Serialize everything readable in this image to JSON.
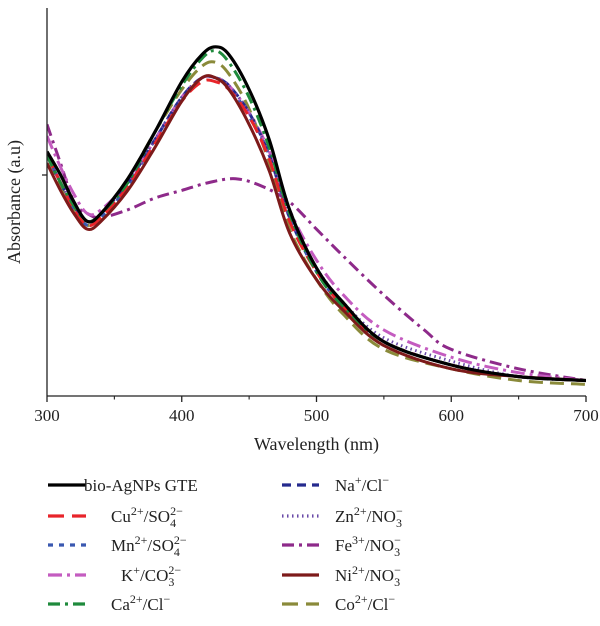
{
  "chart_data": {
    "type": "line",
    "title": "",
    "xlabel": "Wavelength (nm)",
    "ylabel": "Absorbance (a.u)",
    "xlim": [
      300,
      700
    ],
    "ylim": [
      0,
      1
    ],
    "x_ticks": [
      300,
      400,
      500,
      600,
      700
    ],
    "y_ticks_labeled": false,
    "grid": false,
    "legend_position": "bottom, two columns",
    "series": [
      {
        "name": "bio-AgNPs GTE",
        "ion": "",
        "anion": "",
        "color": "#000000",
        "dash": "solid",
        "points": [
          [
            300,
            0.63
          ],
          [
            310,
            0.57
          ],
          [
            320,
            0.5
          ],
          [
            330,
            0.45
          ],
          [
            340,
            0.47
          ],
          [
            360,
            0.56
          ],
          [
            380,
            0.68
          ],
          [
            400,
            0.81
          ],
          [
            415,
            0.88
          ],
          [
            425,
            0.9
          ],
          [
            435,
            0.88
          ],
          [
            450,
            0.79
          ],
          [
            465,
            0.66
          ],
          [
            480,
            0.48
          ],
          [
            500,
            0.33
          ],
          [
            520,
            0.24
          ],
          [
            550,
            0.14
          ],
          [
            600,
            0.08
          ],
          [
            650,
            0.05
          ],
          [
            700,
            0.04
          ]
        ]
      },
      {
        "name": "",
        "ion": "Cu",
        "ion_charge": "2+",
        "anion": "SO",
        "anion_sub": "4",
        "anion_charge": "2−",
        "color": "#e8242a",
        "dash": "long",
        "points": [
          [
            300,
            0.62
          ],
          [
            310,
            0.55
          ],
          [
            320,
            0.48
          ],
          [
            330,
            0.44
          ],
          [
            340,
            0.46
          ],
          [
            360,
            0.54
          ],
          [
            380,
            0.65
          ],
          [
            400,
            0.76
          ],
          [
            415,
            0.81
          ],
          [
            425,
            0.81
          ],
          [
            435,
            0.79
          ],
          [
            450,
            0.72
          ],
          [
            465,
            0.61
          ],
          [
            480,
            0.45
          ],
          [
            500,
            0.32
          ],
          [
            520,
            0.23
          ],
          [
            550,
            0.14
          ],
          [
            600,
            0.08
          ],
          [
            650,
            0.05
          ],
          [
            700,
            0.04
          ]
        ]
      },
      {
        "name": "",
        "ion": "Mn",
        "ion_charge": "2+",
        "anion": "SO",
        "anion_sub": "4",
        "anion_charge": "2−",
        "color": "#3a58b0",
        "dash": "short",
        "points": [
          [
            300,
            0.62
          ],
          [
            310,
            0.55
          ],
          [
            320,
            0.48
          ],
          [
            330,
            0.44
          ],
          [
            340,
            0.46
          ],
          [
            360,
            0.54
          ],
          [
            380,
            0.66
          ],
          [
            400,
            0.77
          ],
          [
            415,
            0.82
          ],
          [
            425,
            0.82
          ],
          [
            435,
            0.8
          ],
          [
            450,
            0.72
          ],
          [
            465,
            0.62
          ],
          [
            480,
            0.46
          ],
          [
            500,
            0.32
          ],
          [
            520,
            0.23
          ],
          [
            550,
            0.14
          ],
          [
            600,
            0.08
          ],
          [
            650,
            0.05
          ],
          [
            700,
            0.04
          ]
        ]
      },
      {
        "name": "",
        "ion": "K",
        "ion_charge": "+",
        "anion": "CO",
        "anion_sub": "3",
        "anion_charge": "2−",
        "color": "#c45cc0",
        "dash": "longdot",
        "points": [
          [
            300,
            0.67
          ],
          [
            310,
            0.59
          ],
          [
            320,
            0.52
          ],
          [
            330,
            0.47
          ],
          [
            340,
            0.48
          ],
          [
            360,
            0.55
          ],
          [
            380,
            0.66
          ],
          [
            400,
            0.77
          ],
          [
            415,
            0.82
          ],
          [
            425,
            0.82
          ],
          [
            435,
            0.8
          ],
          [
            450,
            0.73
          ],
          [
            465,
            0.63
          ],
          [
            480,
            0.48
          ],
          [
            500,
            0.35
          ],
          [
            520,
            0.26
          ],
          [
            550,
            0.17
          ],
          [
            600,
            0.1
          ],
          [
            650,
            0.06
          ],
          [
            700,
            0.04
          ]
        ]
      },
      {
        "name": "",
        "ion": "Ca",
        "ion_charge": "2+",
        "anion": "Cl",
        "anion_sub": "",
        "anion_charge": "−",
        "color": "#1f8a3c",
        "dash": "dashdot",
        "points": [
          [
            300,
            0.62
          ],
          [
            310,
            0.55
          ],
          [
            320,
            0.49
          ],
          [
            330,
            0.45
          ],
          [
            340,
            0.47
          ],
          [
            360,
            0.55
          ],
          [
            380,
            0.68
          ],
          [
            400,
            0.8
          ],
          [
            415,
            0.87
          ],
          [
            425,
            0.89
          ],
          [
            435,
            0.86
          ],
          [
            450,
            0.77
          ],
          [
            465,
            0.64
          ],
          [
            480,
            0.47
          ],
          [
            500,
            0.32
          ],
          [
            520,
            0.23
          ],
          [
            550,
            0.14
          ],
          [
            600,
            0.08
          ],
          [
            650,
            0.05
          ],
          [
            700,
            0.04
          ]
        ]
      },
      {
        "name": "",
        "ion": "Na",
        "ion_charge": "+",
        "anion": "Cl",
        "anion_sub": "",
        "anion_charge": "−",
        "color": "#252a8e",
        "dash": "medium",
        "points": [
          [
            300,
            0.62
          ],
          [
            310,
            0.55
          ],
          [
            320,
            0.49
          ],
          [
            330,
            0.45
          ],
          [
            340,
            0.47
          ],
          [
            360,
            0.55
          ],
          [
            380,
            0.66
          ],
          [
            400,
            0.77
          ],
          [
            415,
            0.82
          ],
          [
            425,
            0.82
          ],
          [
            435,
            0.8
          ],
          [
            450,
            0.73
          ],
          [
            465,
            0.62
          ],
          [
            480,
            0.46
          ],
          [
            500,
            0.33
          ],
          [
            520,
            0.23
          ],
          [
            550,
            0.14
          ],
          [
            600,
            0.08
          ],
          [
            650,
            0.05
          ],
          [
            700,
            0.04
          ]
        ]
      },
      {
        "name": "",
        "ion": "Zn",
        "ion_charge": "2+",
        "anion": "NO",
        "anion_sub": "3",
        "anion_charge": "−",
        "color": "#6a4aa8",
        "dash": "dotted",
        "points": [
          [
            300,
            0.62
          ],
          [
            310,
            0.55
          ],
          [
            320,
            0.49
          ],
          [
            330,
            0.45
          ],
          [
            340,
            0.47
          ],
          [
            360,
            0.55
          ],
          [
            380,
            0.66
          ],
          [
            400,
            0.77
          ],
          [
            415,
            0.82
          ],
          [
            425,
            0.82
          ],
          [
            435,
            0.8
          ],
          [
            450,
            0.73
          ],
          [
            465,
            0.62
          ],
          [
            480,
            0.46
          ],
          [
            500,
            0.33
          ],
          [
            520,
            0.24
          ],
          [
            550,
            0.15
          ],
          [
            600,
            0.09
          ],
          [
            650,
            0.05
          ],
          [
            700,
            0.04
          ]
        ]
      },
      {
        "name": "",
        "ion": "Fe",
        "ion_charge": "3+",
        "anion": "NO",
        "anion_sub": "3",
        "anion_charge": "−",
        "color": "#8e2a8a",
        "dash": "dashdot",
        "points": [
          [
            300,
            0.7
          ],
          [
            310,
            0.6
          ],
          [
            320,
            0.5
          ],
          [
            330,
            0.47
          ],
          [
            340,
            0.46
          ],
          [
            360,
            0.48
          ],
          [
            380,
            0.51
          ],
          [
            400,
            0.53
          ],
          [
            420,
            0.55
          ],
          [
            440,
            0.56
          ],
          [
            460,
            0.54
          ],
          [
            480,
            0.5
          ],
          [
            500,
            0.43
          ],
          [
            520,
            0.36
          ],
          [
            550,
            0.26
          ],
          [
            580,
            0.17
          ],
          [
            600,
            0.12
          ],
          [
            650,
            0.07
          ],
          [
            700,
            0.04
          ]
        ]
      },
      {
        "name": "",
        "ion": "Ni",
        "ion_charge": "2+",
        "anion": "NO",
        "anion_sub": "3",
        "anion_charge": "−",
        "color": "#7d1a1a",
        "dash": "solid",
        "points": [
          [
            300,
            0.6
          ],
          [
            310,
            0.53
          ],
          [
            320,
            0.47
          ],
          [
            330,
            0.43
          ],
          [
            340,
            0.45
          ],
          [
            360,
            0.53
          ],
          [
            380,
            0.64
          ],
          [
            400,
            0.76
          ],
          [
            415,
            0.82
          ],
          [
            425,
            0.82
          ],
          [
            435,
            0.79
          ],
          [
            450,
            0.7
          ],
          [
            465,
            0.58
          ],
          [
            480,
            0.42
          ],
          [
            500,
            0.3
          ],
          [
            520,
            0.22
          ],
          [
            550,
            0.13
          ],
          [
            600,
            0.07
          ],
          [
            650,
            0.05
          ],
          [
            700,
            0.04
          ]
        ]
      },
      {
        "name": "",
        "ion": "Co",
        "ion_charge": "2+",
        "anion": "Cl",
        "anion_sub": "",
        "anion_charge": "−",
        "color": "#8a8a3a",
        "dash": "long",
        "points": [
          [
            300,
            0.6
          ],
          [
            310,
            0.54
          ],
          [
            320,
            0.48
          ],
          [
            330,
            0.44
          ],
          [
            340,
            0.47
          ],
          [
            360,
            0.56
          ],
          [
            380,
            0.68
          ],
          [
            400,
            0.79
          ],
          [
            415,
            0.85
          ],
          [
            425,
            0.86
          ],
          [
            435,
            0.83
          ],
          [
            450,
            0.74
          ],
          [
            465,
            0.6
          ],
          [
            480,
            0.43
          ],
          [
            500,
            0.3
          ],
          [
            520,
            0.21
          ],
          [
            550,
            0.12
          ],
          [
            600,
            0.07
          ],
          [
            650,
            0.04
          ],
          [
            700,
            0.03
          ]
        ]
      }
    ]
  }
}
